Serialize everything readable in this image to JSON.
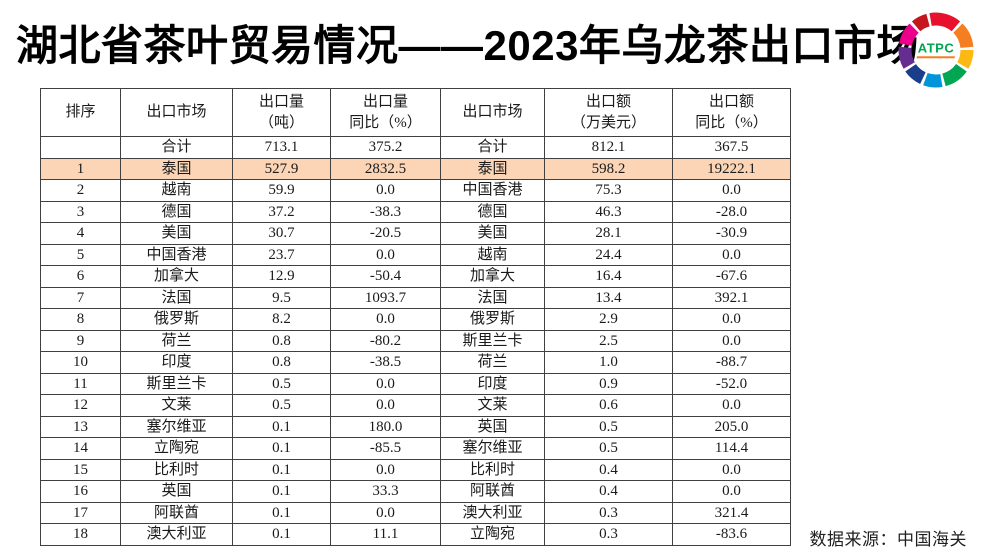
{
  "title": "湖北省茶叶贸易情况——2023年乌龙茶出口市场",
  "logo": {
    "label": "ATPC"
  },
  "source": "数据来源：中国海关",
  "accent_colors": {
    "highlight_row": "#fbd5b5",
    "logo_text_green": "#00a651",
    "logo_underline_orange": "#f57e20"
  },
  "table": {
    "headers": [
      [
        "排序"
      ],
      [
        "出口市场"
      ],
      [
        "出口量",
        "（吨）"
      ],
      [
        "出口量",
        "同比（%）"
      ],
      [
        "出口市场"
      ],
      [
        "出口额",
        "（万美元）"
      ],
      [
        "出口额",
        "同比（%）"
      ]
    ],
    "rows": [
      {
        "highlight": false,
        "cells": [
          "",
          "合计",
          "713.1",
          "375.2",
          "合计",
          "812.1",
          "367.5"
        ]
      },
      {
        "highlight": true,
        "cells": [
          "1",
          "泰国",
          "527.9",
          "2832.5",
          "泰国",
          "598.2",
          "19222.1"
        ]
      },
      {
        "highlight": false,
        "cells": [
          "2",
          "越南",
          "59.9",
          "0.0",
          "中国香港",
          "75.3",
          "0.0"
        ]
      },
      {
        "highlight": false,
        "cells": [
          "3",
          "德国",
          "37.2",
          "-38.3",
          "德国",
          "46.3",
          "-28.0"
        ]
      },
      {
        "highlight": false,
        "cells": [
          "4",
          "美国",
          "30.7",
          "-20.5",
          "美国",
          "28.1",
          "-30.9"
        ]
      },
      {
        "highlight": false,
        "cells": [
          "5",
          "中国香港",
          "23.7",
          "0.0",
          "越南",
          "24.4",
          "0.0"
        ]
      },
      {
        "highlight": false,
        "cells": [
          "6",
          "加拿大",
          "12.9",
          "-50.4",
          "加拿大",
          "16.4",
          "-67.6"
        ]
      },
      {
        "highlight": false,
        "cells": [
          "7",
          "法国",
          "9.5",
          "1093.7",
          "法国",
          "13.4",
          "392.1"
        ]
      },
      {
        "highlight": false,
        "cells": [
          "8",
          "俄罗斯",
          "8.2",
          "0.0",
          "俄罗斯",
          "2.9",
          "0.0"
        ]
      },
      {
        "highlight": false,
        "cells": [
          "9",
          "荷兰",
          "0.8",
          "-80.2",
          "斯里兰卡",
          "2.5",
          "0.0"
        ]
      },
      {
        "highlight": false,
        "cells": [
          "10",
          "印度",
          "0.8",
          "-38.5",
          "荷兰",
          "1.0",
          "-88.7"
        ]
      },
      {
        "highlight": false,
        "cells": [
          "11",
          "斯里兰卡",
          "0.5",
          "0.0",
          "印度",
          "0.9",
          "-52.0"
        ]
      },
      {
        "highlight": false,
        "cells": [
          "12",
          "文莱",
          "0.5",
          "0.0",
          "文莱",
          "0.6",
          "0.0"
        ]
      },
      {
        "highlight": false,
        "cells": [
          "13",
          "塞尔维亚",
          "0.1",
          "180.0",
          "英国",
          "0.5",
          "205.0"
        ]
      },
      {
        "highlight": false,
        "cells": [
          "14",
          "立陶宛",
          "0.1",
          "-85.5",
          "塞尔维亚",
          "0.5",
          "114.4"
        ]
      },
      {
        "highlight": false,
        "cells": [
          "15",
          "比利时",
          "0.1",
          "0.0",
          "比利时",
          "0.4",
          "0.0"
        ]
      },
      {
        "highlight": false,
        "cells": [
          "16",
          "英国",
          "0.1",
          "33.3",
          "阿联酋",
          "0.4",
          "0.0"
        ]
      },
      {
        "highlight": false,
        "cells": [
          "17",
          "阿联酋",
          "0.1",
          "0.0",
          "澳大利亚",
          "0.3",
          "321.4"
        ]
      },
      {
        "highlight": false,
        "cells": [
          "18",
          "澳大利亚",
          "0.1",
          "11.1",
          "立陶宛",
          "0.3",
          "-83.6"
        ]
      }
    ]
  },
  "chart_data": {
    "type": "table",
    "title": "湖北省茶叶贸易情况——2023年乌龙茶出口市场",
    "columns": [
      "排序",
      "出口市场",
      "出口量（吨）",
      "出口量同比（%）",
      "出口市场",
      "出口额（万美元）",
      "出口额同比（%）"
    ],
    "total_row": [
      "",
      "合计",
      713.1,
      375.2,
      "合计",
      812.1,
      367.5
    ],
    "volume_markets": [
      "泰国",
      "越南",
      "德国",
      "美国",
      "中国香港",
      "加拿大",
      "法国",
      "俄罗斯",
      "荷兰",
      "印度",
      "斯里兰卡",
      "文莱",
      "塞尔维亚",
      "立陶宛",
      "比利时",
      "英国",
      "阿联酋",
      "澳大利亚"
    ],
    "volume_tons": [
      527.9,
      59.9,
      37.2,
      30.7,
      23.7,
      12.9,
      9.5,
      8.2,
      0.8,
      0.8,
      0.5,
      0.5,
      0.1,
      0.1,
      0.1,
      0.1,
      0.1,
      0.1
    ],
    "volume_yoy_pct": [
      2832.5,
      0.0,
      -38.3,
      -20.5,
      0.0,
      -50.4,
      1093.7,
      0.0,
      -80.2,
      -38.5,
      0.0,
      0.0,
      180.0,
      -85.5,
      0.0,
      33.3,
      0.0,
      11.1
    ],
    "value_markets": [
      "泰国",
      "中国香港",
      "德国",
      "美国",
      "越南",
      "加拿大",
      "法国",
      "俄罗斯",
      "斯里兰卡",
      "荷兰",
      "印度",
      "文莱",
      "英国",
      "塞尔维亚",
      "比利时",
      "阿联酋",
      "澳大利亚",
      "立陶宛"
    ],
    "value_10k_usd": [
      598.2,
      75.3,
      46.3,
      28.1,
      24.4,
      16.4,
      13.4,
      2.9,
      2.5,
      1.0,
      0.9,
      0.6,
      0.5,
      0.5,
      0.4,
      0.4,
      0.3,
      0.3
    ],
    "value_yoy_pct": [
      19222.1,
      0.0,
      -28.0,
      -30.9,
      0.0,
      -67.6,
      392.1,
      0.0,
      0.0,
      -88.7,
      -52.0,
      0.0,
      205.0,
      114.4,
      0.0,
      0.0,
      321.4,
      -83.6
    ]
  }
}
